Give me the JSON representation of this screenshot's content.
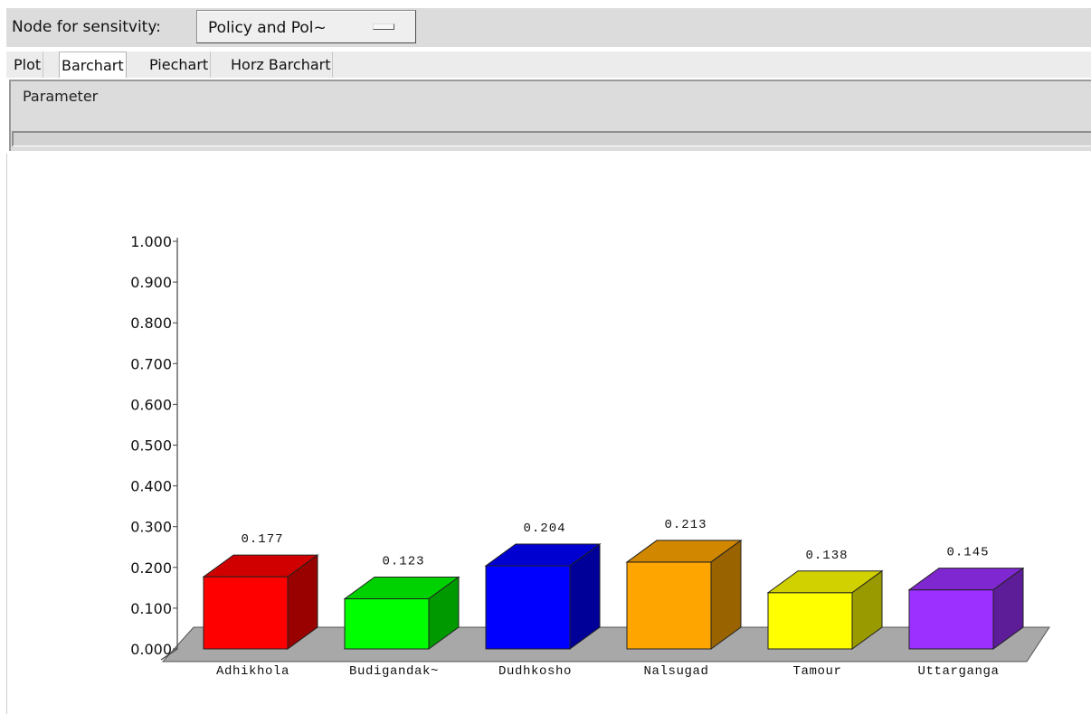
{
  "toolbar": {
    "node_label": "Node for sensitvity:",
    "node_value": "Policy and Pol~"
  },
  "tabs": [
    {
      "label": "Plot",
      "active": false
    },
    {
      "label": "Barchart",
      "active": true
    },
    {
      "label": "Piechart",
      "active": false
    },
    {
      "label": "Horz Barchart",
      "active": false
    }
  ],
  "parameter_panel": {
    "label": "Parameter"
  },
  "chart_data": {
    "type": "bar",
    "style": "3d",
    "categories": [
      "Adhikhola",
      "Budigandak~",
      "Dudhkosho",
      "Nalsugad",
      "Tamour",
      "Uttarganga"
    ],
    "values": [
      0.177,
      0.123,
      0.204,
      0.213,
      0.138,
      0.145
    ],
    "value_labels": [
      "0.177",
      "0.123",
      "0.204",
      "0.213",
      "0.138",
      "0.145"
    ],
    "colors": [
      "#ff0000",
      "#00ff00",
      "#0000ff",
      "#ffa500",
      "#ffff00",
      "#9b30ff"
    ],
    "yticks": [
      "0.000",
      "0.100",
      "0.200",
      "0.300",
      "0.400",
      "0.500",
      "0.600",
      "0.700",
      "0.800",
      "0.900",
      "1.000"
    ],
    "ylim": [
      0,
      1
    ],
    "floor_color": "#a8a8a8",
    "title": "",
    "xlabel": "",
    "ylabel": ""
  }
}
